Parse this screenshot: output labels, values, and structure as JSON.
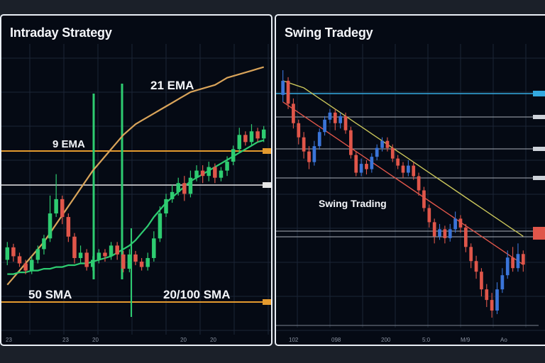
{
  "chart_data": [
    {
      "type": "candlestick",
      "title": "Intraday Strategy",
      "annotations": [
        "21 EMA",
        "9 EMA",
        "50 SMA",
        "20/100 SMA"
      ],
      "x_tick_labels": [
        "23",
        "23",
        "20",
        "20",
        "20"
      ],
      "grid": true,
      "colors": {
        "up": "#2ecc71",
        "down": "#e0564a",
        "ema21": "#d9a45a",
        "sma_green": "#2ecc71",
        "level_orange": "#e49a2e",
        "level_white": "#e6e6e6"
      },
      "candles": [
        {
          "o": 60,
          "c": 67,
          "h": 70,
          "l": 57
        },
        {
          "o": 67,
          "c": 62,
          "h": 69,
          "l": 59
        },
        {
          "o": 62,
          "c": 58,
          "h": 64,
          "l": 56
        },
        {
          "o": 58,
          "c": 54,
          "h": 60,
          "l": 52
        },
        {
          "o": 54,
          "c": 60,
          "h": 62,
          "l": 52
        },
        {
          "o": 60,
          "c": 66,
          "h": 68,
          "l": 58
        },
        {
          "o": 66,
          "c": 72,
          "h": 74,
          "l": 63
        },
        {
          "o": 72,
          "c": 86,
          "h": 96,
          "l": 70
        },
        {
          "o": 86,
          "c": 94,
          "h": 108,
          "l": 84
        },
        {
          "o": 94,
          "c": 84,
          "h": 96,
          "l": 80
        },
        {
          "o": 84,
          "c": 73,
          "h": 86,
          "l": 70
        },
        {
          "o": 73,
          "c": 61,
          "h": 75,
          "l": 58
        },
        {
          "o": 61,
          "c": 64,
          "h": 68,
          "l": 58
        },
        {
          "o": 64,
          "c": 56,
          "h": 66,
          "l": 54
        },
        {
          "o": 56,
          "c": 60,
          "h": 62,
          "l": 54
        },
        {
          "o": 60,
          "c": 64,
          "h": 66,
          "l": 58
        },
        {
          "o": 64,
          "c": 62,
          "h": 66,
          "l": 59
        },
        {
          "o": 62,
          "c": 68,
          "h": 70,
          "l": 60
        },
        {
          "o": 68,
          "c": 63,
          "h": 70,
          "l": 60
        },
        {
          "o": 63,
          "c": 55,
          "h": 65,
          "l": 53
        },
        {
          "o": 55,
          "c": 63,
          "h": 66,
          "l": 53
        },
        {
          "o": 63,
          "c": 59,
          "h": 65,
          "l": 57
        },
        {
          "o": 59,
          "c": 56,
          "h": 61,
          "l": 54
        },
        {
          "o": 56,
          "c": 61,
          "h": 64,
          "l": 54
        },
        {
          "o": 61,
          "c": 72,
          "h": 76,
          "l": 59
        },
        {
          "o": 72,
          "c": 86,
          "h": 90,
          "l": 70
        },
        {
          "o": 86,
          "c": 94,
          "h": 97,
          "l": 84
        },
        {
          "o": 94,
          "c": 98,
          "h": 102,
          "l": 92
        },
        {
          "o": 98,
          "c": 103,
          "h": 106,
          "l": 96
        },
        {
          "o": 103,
          "c": 97,
          "h": 107,
          "l": 93
        },
        {
          "o": 97,
          "c": 106,
          "h": 110,
          "l": 95
        },
        {
          "o": 106,
          "c": 110,
          "h": 113,
          "l": 104
        },
        {
          "o": 110,
          "c": 107,
          "h": 113,
          "l": 103
        },
        {
          "o": 107,
          "c": 112,
          "h": 115,
          "l": 104
        },
        {
          "o": 112,
          "c": 106,
          "h": 114,
          "l": 103
        },
        {
          "o": 106,
          "c": 110,
          "h": 112,
          "l": 104
        },
        {
          "o": 110,
          "c": 115,
          "h": 118,
          "l": 107
        },
        {
          "o": 115,
          "c": 122,
          "h": 124,
          "l": 113
        },
        {
          "o": 122,
          "c": 130,
          "h": 134,
          "l": 120
        },
        {
          "o": 130,
          "c": 126,
          "h": 132,
          "l": 124
        },
        {
          "o": 126,
          "c": 132,
          "h": 136,
          "l": 124
        },
        {
          "o": 132,
          "c": 128,
          "h": 134,
          "l": 126
        },
        {
          "o": 128,
          "c": 133,
          "h": 135,
          "l": 126
        }
      ],
      "ema21": [
        46,
        50,
        54,
        58,
        62,
        66,
        70,
        75,
        80,
        85,
        90,
        95,
        100,
        105,
        110,
        114,
        118,
        122,
        126,
        130,
        133,
        136,
        138,
        140,
        142,
        144,
        146,
        148,
        150,
        152,
        154,
        155,
        156,
        157,
        158,
        160,
        162,
        163,
        164,
        165,
        166,
        167,
        168
      ],
      "sma_green": [
        52,
        52,
        53,
        53,
        54,
        54,
        55,
        55,
        56,
        56,
        57,
        57,
        58,
        58,
        59,
        60,
        61,
        62,
        64,
        66,
        68,
        71,
        75,
        79,
        84,
        88,
        92,
        95,
        98,
        101,
        104,
        106,
        108,
        110,
        112,
        114,
        116,
        118,
        120,
        122,
        124,
        126,
        127
      ]
    },
    {
      "type": "candlestick",
      "title": "Swing Tradegy",
      "annotations": [
        "Swing Trading"
      ],
      "x_tick_labels": [
        "102",
        "098",
        "200",
        "5:0",
        "M/9",
        "Ao"
      ],
      "grid": true,
      "colors": {
        "up": "#3a74d8",
        "down": "#e0564a",
        "ma_slow": "#c9c55a",
        "ma_fast": "#e0564a",
        "level_blue": "#34a9e0",
        "level_gray": "#aab0ba",
        "price_tag": "#e0564a"
      },
      "candles": [
        {
          "o": 120,
          "c": 128,
          "h": 134,
          "l": 116
        },
        {
          "o": 128,
          "c": 115,
          "h": 130,
          "l": 112
        },
        {
          "o": 115,
          "c": 104,
          "h": 118,
          "l": 101
        },
        {
          "o": 104,
          "c": 96,
          "h": 106,
          "l": 92
        },
        {
          "o": 96,
          "c": 88,
          "h": 99,
          "l": 84
        },
        {
          "o": 88,
          "c": 82,
          "h": 91,
          "l": 78
        },
        {
          "o": 82,
          "c": 91,
          "h": 94,
          "l": 80
        },
        {
          "o": 91,
          "c": 99,
          "h": 101,
          "l": 89
        },
        {
          "o": 99,
          "c": 106,
          "h": 108,
          "l": 97
        },
        {
          "o": 106,
          "c": 110,
          "h": 112,
          "l": 104
        },
        {
          "o": 110,
          "c": 104,
          "h": 112,
          "l": 100
        },
        {
          "o": 104,
          "c": 108,
          "h": 110,
          "l": 101
        },
        {
          "o": 108,
          "c": 100,
          "h": 110,
          "l": 98
        },
        {
          "o": 100,
          "c": 86,
          "h": 102,
          "l": 84
        },
        {
          "o": 86,
          "c": 76,
          "h": 88,
          "l": 74
        },
        {
          "o": 76,
          "c": 81,
          "h": 84,
          "l": 74
        },
        {
          "o": 81,
          "c": 78,
          "h": 83,
          "l": 75
        },
        {
          "o": 78,
          "c": 85,
          "h": 87,
          "l": 76
        },
        {
          "o": 85,
          "c": 90,
          "h": 92,
          "l": 83
        },
        {
          "o": 90,
          "c": 94,
          "h": 96,
          "l": 88
        },
        {
          "o": 94,
          "c": 90,
          "h": 96,
          "l": 88
        },
        {
          "o": 90,
          "c": 84,
          "h": 92,
          "l": 82
        },
        {
          "o": 84,
          "c": 80,
          "h": 86,
          "l": 78
        },
        {
          "o": 80,
          "c": 76,
          "h": 82,
          "l": 73
        },
        {
          "o": 76,
          "c": 80,
          "h": 83,
          "l": 74
        },
        {
          "o": 80,
          "c": 74,
          "h": 82,
          "l": 72
        },
        {
          "o": 74,
          "c": 66,
          "h": 76,
          "l": 63
        },
        {
          "o": 66,
          "c": 56,
          "h": 68,
          "l": 54
        },
        {
          "o": 56,
          "c": 48,
          "h": 58,
          "l": 45
        },
        {
          "o": 48,
          "c": 40,
          "h": 50,
          "l": 36
        },
        {
          "o": 40,
          "c": 44,
          "h": 47,
          "l": 38
        },
        {
          "o": 44,
          "c": 39,
          "h": 46,
          "l": 36
        },
        {
          "o": 39,
          "c": 44,
          "h": 47,
          "l": 37
        },
        {
          "o": 44,
          "c": 50,
          "h": 54,
          "l": 42
        },
        {
          "o": 50,
          "c": 45,
          "h": 52,
          "l": 42
        },
        {
          "o": 45,
          "c": 34,
          "h": 47,
          "l": 31
        },
        {
          "o": 34,
          "c": 26,
          "h": 36,
          "l": 22
        },
        {
          "o": 26,
          "c": 20,
          "h": 29,
          "l": 16
        },
        {
          "o": 20,
          "c": 10,
          "h": 22,
          "l": 6
        },
        {
          "o": 10,
          "c": 4,
          "h": 13,
          "l": 0
        },
        {
          "o": 4,
          "c": -2,
          "h": 8,
          "l": -6
        },
        {
          "o": -2,
          "c": 10,
          "h": 14,
          "l": -4
        },
        {
          "o": 10,
          "c": 18,
          "h": 22,
          "l": 8
        },
        {
          "o": 18,
          "c": 28,
          "h": 32,
          "l": 16
        },
        {
          "o": 28,
          "c": 22,
          "h": 34,
          "l": 20
        },
        {
          "o": 22,
          "c": 30,
          "h": 36,
          "l": 20
        },
        {
          "o": 30,
          "c": 24,
          "h": 32,
          "l": 20
        }
      ],
      "ma_slow": [
        128,
        127,
        126,
        125,
        124,
        122,
        120,
        118,
        116,
        114,
        112,
        110,
        108,
        106,
        104,
        102,
        100,
        98,
        96,
        94,
        92,
        90,
        88,
        86,
        84,
        82,
        80,
        78,
        76,
        74,
        72,
        70,
        68,
        66,
        64,
        62,
        60,
        58,
        56,
        54,
        52,
        50,
        48,
        46,
        44,
        42,
        40
      ],
      "ma_fast": [
        116,
        114,
        112,
        110,
        108,
        106,
        104,
        102,
        100,
        98,
        96,
        94,
        92,
        90,
        88,
        86,
        84,
        82,
        80,
        78,
        76,
        74,
        72,
        70,
        68,
        66,
        64,
        62,
        60,
        58,
        56,
        54,
        52,
        50,
        48,
        46,
        44,
        42,
        40,
        38,
        36,
        34,
        32,
        30,
        28,
        26,
        24
      ]
    }
  ],
  "panels": {
    "left": {
      "title": "Intraday Strategy"
    },
    "right": {
      "title": "Swing Tradegy"
    }
  }
}
